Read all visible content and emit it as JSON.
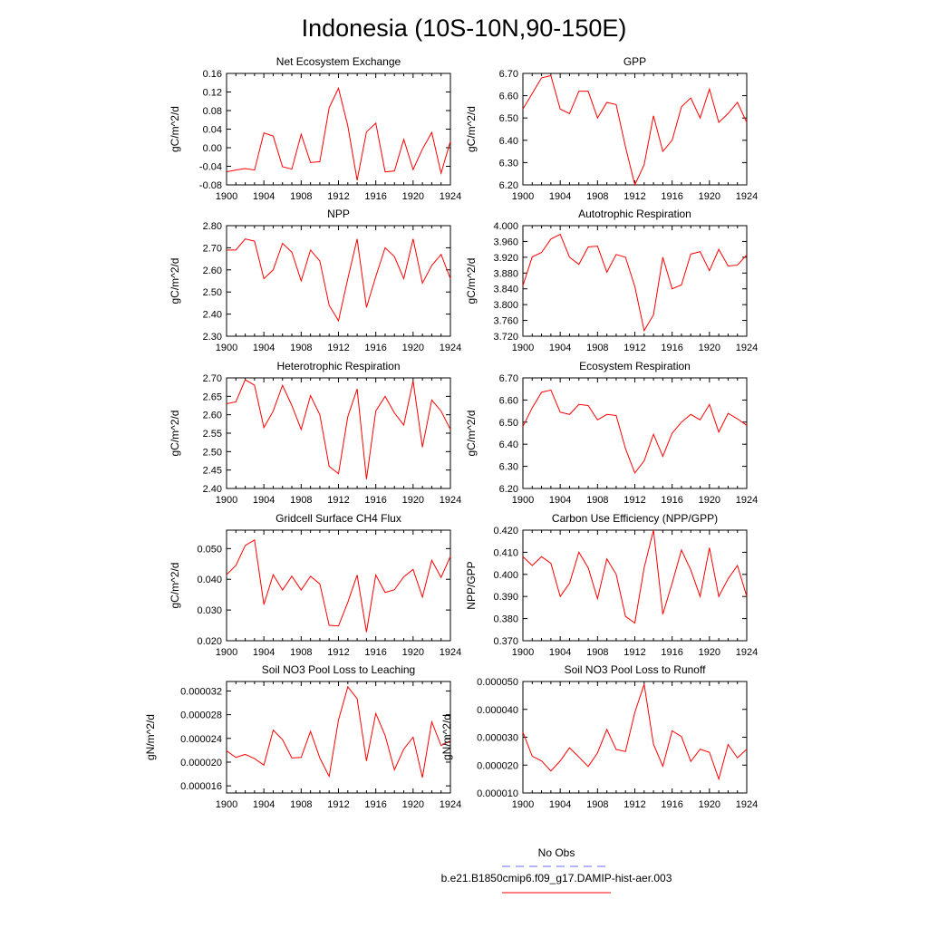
{
  "title": "Indonesia (10S-10N,90-150E)",
  "colors": {
    "series": "#ff0000",
    "no_obs": "#6b6bff",
    "frame": "#000000"
  },
  "legend": [
    {
      "label": "No Obs",
      "style": "dashed",
      "color": "#6b6bff"
    },
    {
      "label": "b.e21.B1850cmip6.f09_g17.DAMIP-hist-aer.003",
      "style": "solid",
      "color": "#ff0000"
    }
  ],
  "chart_data": [
    {
      "type": "line",
      "title": "Net Ecosystem Exchange",
      "ylabel": "gC/m^2/d",
      "xlim": [
        1900,
        1924
      ],
      "ylim": [
        -0.08,
        0.16
      ],
      "xticks": [
        "1900",
        "1904",
        "1908",
        "1912",
        "1916",
        "1920",
        "1924"
      ],
      "yticks": [
        "-0.08",
        "-0.04",
        "0.00",
        "0.04",
        "0.08",
        "0.12",
        "0.16"
      ],
      "series": [
        {
          "x": [
            1900,
            1901,
            1902,
            1903,
            1904,
            1905,
            1906,
            1907,
            1908,
            1909,
            1910,
            1911,
            1912,
            1913,
            1914,
            1915,
            1916,
            1917,
            1918,
            1919,
            1920,
            1921,
            1922,
            1923,
            1924
          ],
          "values": [
            -0.052,
            -0.048,
            -0.045,
            -0.048,
            0.032,
            0.025,
            -0.041,
            -0.046,
            0.029,
            -0.032,
            -0.03,
            0.086,
            0.128,
            0.047,
            -0.07,
            0.034,
            0.053,
            -0.052,
            -0.05,
            0.018,
            -0.047,
            -0.003,
            0.033,
            -0.055,
            0.014
          ]
        }
      ]
    },
    {
      "type": "line",
      "title": "GPP",
      "ylabel": "gC/m^2/d",
      "xlim": [
        1900,
        1924
      ],
      "ylim": [
        6.2,
        6.7
      ],
      "xticks": [
        "1900",
        "1904",
        "1908",
        "1912",
        "1916",
        "1920",
        "1924"
      ],
      "yticks": [
        "6.20",
        "6.30",
        "6.40",
        "6.50",
        "6.60",
        "6.70"
      ],
      "series": [
        {
          "x": [
            1900,
            1901,
            1902,
            1903,
            1904,
            1905,
            1906,
            1907,
            1908,
            1909,
            1910,
            1911,
            1912,
            1913,
            1914,
            1915,
            1916,
            1917,
            1918,
            1919,
            1920,
            1921,
            1922,
            1923,
            1924
          ],
          "values": [
            6.54,
            6.61,
            6.68,
            6.69,
            6.54,
            6.52,
            6.62,
            6.62,
            6.5,
            6.57,
            6.56,
            6.37,
            6.2,
            6.29,
            6.51,
            6.35,
            6.4,
            6.55,
            6.59,
            6.5,
            6.63,
            6.48,
            6.52,
            6.57,
            6.48
          ]
        }
      ]
    },
    {
      "type": "line",
      "title": "NPP",
      "ylabel": "gC/m^2/d",
      "xlim": [
        1900,
        1924
      ],
      "ylim": [
        2.3,
        2.8
      ],
      "xticks": [
        "1900",
        "1904",
        "1908",
        "1912",
        "1916",
        "1920",
        "1924"
      ],
      "yticks": [
        "2.30",
        "2.40",
        "2.50",
        "2.60",
        "2.70",
        "2.80"
      ],
      "series": [
        {
          "x": [
            1900,
            1901,
            1902,
            1903,
            1904,
            1905,
            1906,
            1907,
            1908,
            1909,
            1910,
            1911,
            1912,
            1913,
            1914,
            1915,
            1916,
            1917,
            1918,
            1919,
            1920,
            1921,
            1922,
            1923,
            1924
          ],
          "values": [
            2.69,
            2.69,
            2.74,
            2.73,
            2.56,
            2.6,
            2.72,
            2.68,
            2.55,
            2.69,
            2.64,
            2.44,
            2.37,
            2.56,
            2.74,
            2.43,
            2.57,
            2.7,
            2.66,
            2.56,
            2.74,
            2.54,
            2.62,
            2.67,
            2.56
          ]
        }
      ]
    },
    {
      "type": "line",
      "title": "Autotrophic Respiration",
      "ylabel": "gC/m^2/d",
      "xlim": [
        1900,
        1924
      ],
      "ylim": [
        3.72,
        4.0
      ],
      "xticks": [
        "1900",
        "1904",
        "1908",
        "1912",
        "1916",
        "1920",
        "1924"
      ],
      "yticks": [
        "3.720",
        "3.760",
        "3.800",
        "3.840",
        "3.880",
        "3.920",
        "3.960",
        "4.000"
      ],
      "series": [
        {
          "x": [
            1900,
            1901,
            1902,
            1903,
            1904,
            1905,
            1906,
            1907,
            1908,
            1909,
            1910,
            1911,
            1912,
            1913,
            1914,
            1915,
            1916,
            1917,
            1918,
            1919,
            1920,
            1921,
            1922,
            1923,
            1924
          ],
          "values": [
            3.848,
            3.921,
            3.932,
            3.966,
            3.978,
            3.92,
            3.902,
            3.946,
            3.948,
            3.882,
            3.927,
            3.92,
            3.846,
            3.734,
            3.774,
            3.92,
            3.84,
            3.85,
            3.928,
            3.934,
            3.886,
            3.94,
            3.898,
            3.9,
            3.926
          ]
        }
      ]
    },
    {
      "type": "line",
      "title": "Heterotrophic Respiration",
      "ylabel": "gC/m^2/d",
      "xlim": [
        1900,
        1924
      ],
      "ylim": [
        2.4,
        2.7
      ],
      "xticks": [
        "1900",
        "1904",
        "1908",
        "1912",
        "1916",
        "1920",
        "1924"
      ],
      "yticks": [
        "2.40",
        "2.45",
        "2.50",
        "2.55",
        "2.60",
        "2.65",
        "2.70"
      ],
      "series": [
        {
          "x": [
            1900,
            1901,
            1902,
            1903,
            1904,
            1905,
            1906,
            1907,
            1908,
            1909,
            1910,
            1911,
            1912,
            1913,
            1914,
            1915,
            1916,
            1917,
            1918,
            1919,
            1920,
            1921,
            1922,
            1923,
            1924
          ],
          "values": [
            2.63,
            2.635,
            2.695,
            2.68,
            2.565,
            2.61,
            2.68,
            2.625,
            2.56,
            2.652,
            2.6,
            2.46,
            2.44,
            2.595,
            2.67,
            2.425,
            2.61,
            2.65,
            2.605,
            2.572,
            2.692,
            2.512,
            2.64,
            2.61,
            2.56
          ]
        }
      ]
    },
    {
      "type": "line",
      "title": "Ecosystem Respiration",
      "ylabel": "gC/m^2/d",
      "xlim": [
        1900,
        1924
      ],
      "ylim": [
        6.2,
        6.7
      ],
      "xticks": [
        "1900",
        "1904",
        "1908",
        "1912",
        "1916",
        "1920",
        "1924"
      ],
      "yticks": [
        "6.20",
        "6.30",
        "6.40",
        "6.50",
        "6.60",
        "6.70"
      ],
      "series": [
        {
          "x": [
            1900,
            1901,
            1902,
            1903,
            1904,
            1905,
            1906,
            1907,
            1908,
            1909,
            1910,
            1911,
            1912,
            1913,
            1914,
            1915,
            1916,
            1917,
            1918,
            1919,
            1920,
            1921,
            1922,
            1923,
            1924
          ],
          "values": [
            6.48,
            6.565,
            6.635,
            6.645,
            6.545,
            6.535,
            6.58,
            6.575,
            6.51,
            6.535,
            6.53,
            6.38,
            6.27,
            6.325,
            6.445,
            6.345,
            6.45,
            6.5,
            6.535,
            6.51,
            6.58,
            6.455,
            6.54,
            6.515,
            6.485
          ]
        }
      ]
    },
    {
      "type": "line",
      "title": "Gridcell Surface CH4 Flux",
      "ylabel": "gC/m^2/d",
      "xlim": [
        1900,
        1924
      ],
      "ylim": [
        0.02,
        0.056
      ],
      "xticks": [
        "1900",
        "1904",
        "1908",
        "1912",
        "1916",
        "1920",
        "1924"
      ],
      "yticks": [
        "0.020",
        "0.030",
        "0.040",
        "0.050"
      ],
      "series": [
        {
          "x": [
            1900,
            1901,
            1902,
            1903,
            1904,
            1905,
            1906,
            1907,
            1908,
            1909,
            1910,
            1911,
            1912,
            1913,
            1914,
            1915,
            1916,
            1917,
            1918,
            1919,
            1920,
            1921,
            1922,
            1923,
            1924
          ],
          "values": [
            0.0415,
            0.0445,
            0.051,
            0.0528,
            0.0318,
            0.0415,
            0.0365,
            0.041,
            0.0365,
            0.041,
            0.0385,
            0.025,
            0.0248,
            0.0325,
            0.0414,
            0.0228,
            0.0414,
            0.0357,
            0.0366,
            0.0408,
            0.0432,
            0.0342,
            0.0462,
            0.0406,
            0.0475
          ]
        }
      ]
    },
    {
      "type": "line",
      "title": "Carbon Use Efficiency (NPP/GPP)",
      "ylabel": "NPP/GPP",
      "xlim": [
        1900,
        1924
      ],
      "ylim": [
        0.37,
        0.42
      ],
      "xticks": [
        "1900",
        "1904",
        "1908",
        "1912",
        "1916",
        "1920",
        "1924"
      ],
      "yticks": [
        "0.370",
        "0.380",
        "0.390",
        "0.400",
        "0.410",
        "0.420"
      ],
      "series": [
        {
          "x": [
            1900,
            1901,
            1902,
            1903,
            1904,
            1905,
            1906,
            1907,
            1908,
            1909,
            1910,
            1911,
            1912,
            1913,
            1914,
            1915,
            1916,
            1917,
            1918,
            1919,
            1920,
            1921,
            1922,
            1923,
            1924
          ],
          "values": [
            0.408,
            0.404,
            0.408,
            0.405,
            0.39,
            0.396,
            0.41,
            0.403,
            0.389,
            0.407,
            0.4,
            0.381,
            0.378,
            0.403,
            0.42,
            0.382,
            0.396,
            0.411,
            0.402,
            0.39,
            0.412,
            0.39,
            0.398,
            0.404,
            0.39
          ]
        }
      ]
    },
    {
      "type": "line",
      "title": "Soil NO3 Pool Loss to Leaching",
      "ylabel": "gN/m^2/d",
      "xlim": [
        1900,
        1924
      ],
      "ylim": [
        1.48e-05,
        3.36e-05
      ],
      "xticks": [
        "1900",
        "1904",
        "1908",
        "1912",
        "1916",
        "1920",
        "1924"
      ],
      "yticks": [
        "0.000016",
        "0.000020",
        "0.000024",
        "0.000028",
        "0.000032"
      ],
      "series": [
        {
          "x": [
            1900,
            1901,
            1902,
            1903,
            1904,
            1905,
            1906,
            1907,
            1908,
            1909,
            1910,
            1911,
            1912,
            1913,
            1914,
            1915,
            1916,
            1917,
            1918,
            1919,
            1920,
            1921,
            1922,
            1923,
            1924
          ],
          "values": [
            2.19e-05,
            2.08e-05,
            2.13e-05,
            2.06e-05,
            1.95e-05,
            2.54e-05,
            2.38e-05,
            2.07e-05,
            2.08e-05,
            2.52e-05,
            2.07e-05,
            1.76e-05,
            2.71e-05,
            3.27e-05,
            3.07e-05,
            2.02e-05,
            2.82e-05,
            2.45e-05,
            1.87e-05,
            2.22e-05,
            2.42e-05,
            1.74e-05,
            2.68e-05,
            2.28e-05,
            2.36e-05
          ]
        }
      ]
    },
    {
      "type": "line",
      "title": "Soil NO3 Pool Loss to Runoff",
      "ylabel": "gN/m^2/d",
      "xlim": [
        1900,
        1924
      ],
      "ylim": [
        1e-05,
        5e-05
      ],
      "xticks": [
        "1900",
        "1904",
        "1908",
        "1912",
        "1916",
        "1920",
        "1924"
      ],
      "yticks": [
        "0.000010",
        "0.000020",
        "0.000030",
        "0.000040",
        "0.000050"
      ],
      "series": [
        {
          "x": [
            1900,
            1901,
            1902,
            1903,
            1904,
            1905,
            1906,
            1907,
            1908,
            1909,
            1910,
            1911,
            1912,
            1913,
            1914,
            1915,
            1916,
            1917,
            1918,
            1919,
            1920,
            1921,
            1922,
            1923,
            1924
          ],
          "values": [
            3.18e-05,
            2.32e-05,
            2.15e-05,
            1.79e-05,
            2.15e-05,
            2.62e-05,
            2.29e-05,
            1.95e-05,
            2.44e-05,
            3.28e-05,
            2.56e-05,
            2.49e-05,
            3.89e-05,
            4.9e-05,
            2.75e-05,
            1.96e-05,
            3.23e-05,
            3.02e-05,
            2.13e-05,
            2.57e-05,
            2.46e-05,
            1.5e-05,
            2.74e-05,
            2.26e-05,
            2.57e-05
          ]
        }
      ]
    }
  ]
}
